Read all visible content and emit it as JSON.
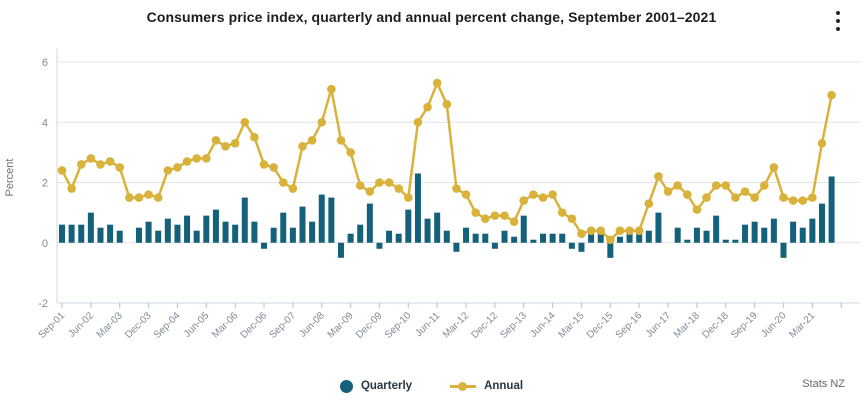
{
  "header": {
    "title": "Consumers price index, quarterly and annual percent change, September 2001–2021"
  },
  "footer": {
    "source": "Stats NZ"
  },
  "colors": {
    "quarterly_bar": "#15607A",
    "annual_line": "#D9B23C",
    "grid_line": "#e4e4e4",
    "axis_line": "#ccd8e4",
    "tick_mark": "#b9cbdf",
    "axis_text": "#7e8b97",
    "ylabel_text": "#65727e"
  },
  "chart_data": {
    "type": "bar+line",
    "title": "Consumers price index, quarterly and annual percent change, September 2001–2021",
    "xlabel": "",
    "ylabel": "Percent",
    "ylim": [
      -2,
      6
    ],
    "yticks": [
      6,
      4,
      2,
      0,
      -2
    ],
    "grid": true,
    "legend_position": "bottom-center",
    "xtick_every": 3,
    "xtick_labels": [
      "Sep-01",
      "Jun-02",
      "Mar-03",
      "Dec-03",
      "Sep-04",
      "Jun-05",
      "Mar-06",
      "Dec-06",
      "Sep-07",
      "Jun-08",
      "Mar-09",
      "Dec-09",
      "Sep-10",
      "Jun-11",
      "Mar-12",
      "Dec-12",
      "Sep-13",
      "Jun-14",
      "Mar-15",
      "Dec-15",
      "Sep-16",
      "Jun-17",
      "Mar-18",
      "Dec-18",
      "Sep-19",
      "Jun-20",
      "Mar-21"
    ],
    "categories": [
      "Sep-01",
      "Dec-01",
      "Mar-02",
      "Jun-02",
      "Sep-02",
      "Dec-02",
      "Mar-03",
      "Jun-03",
      "Sep-03",
      "Dec-03",
      "Mar-04",
      "Jun-04",
      "Sep-04",
      "Dec-04",
      "Mar-05",
      "Jun-05",
      "Sep-05",
      "Dec-05",
      "Mar-06",
      "Jun-06",
      "Sep-06",
      "Dec-06",
      "Mar-07",
      "Jun-07",
      "Sep-07",
      "Dec-07",
      "Mar-08",
      "Jun-08",
      "Sep-08",
      "Dec-08",
      "Mar-09",
      "Jun-09",
      "Sep-09",
      "Dec-09",
      "Mar-10",
      "Jun-10",
      "Sep-10",
      "Dec-10",
      "Mar-11",
      "Jun-11",
      "Sep-11",
      "Dec-11",
      "Mar-12",
      "Jun-12",
      "Sep-12",
      "Dec-12",
      "Mar-13",
      "Jun-13",
      "Sep-13",
      "Dec-13",
      "Mar-14",
      "Jun-14",
      "Sep-14",
      "Dec-14",
      "Mar-15",
      "Jun-15",
      "Sep-15",
      "Dec-15",
      "Mar-16",
      "Jun-16",
      "Sep-16",
      "Dec-16",
      "Mar-17",
      "Jun-17",
      "Sep-17",
      "Dec-17",
      "Mar-18",
      "Jun-18",
      "Sep-18",
      "Dec-18",
      "Mar-19",
      "Jun-19",
      "Sep-19",
      "Dec-19",
      "Mar-20",
      "Jun-20",
      "Sep-20",
      "Dec-20",
      "Mar-21",
      "Jun-21",
      "Sep-21"
    ],
    "series": [
      {
        "name": "Quarterly",
        "type": "bar",
        "color": "#15607A",
        "values": [
          0.6,
          0.6,
          0.6,
          1.0,
          0.5,
          0.6,
          0.4,
          0.0,
          0.5,
          0.7,
          0.4,
          0.8,
          0.6,
          0.9,
          0.4,
          0.9,
          1.1,
          0.7,
          0.6,
          1.5,
          0.7,
          -0.2,
          0.5,
          1.0,
          0.5,
          1.2,
          0.7,
          1.6,
          1.5,
          -0.5,
          0.3,
          0.6,
          1.3,
          -0.2,
          0.4,
          0.3,
          1.1,
          2.3,
          0.8,
          1.0,
          0.4,
          -0.3,
          0.5,
          0.3,
          0.3,
          -0.2,
          0.4,
          0.2,
          0.9,
          0.1,
          0.3,
          0.3,
          0.3,
          -0.2,
          -0.3,
          0.4,
          0.3,
          -0.5,
          0.2,
          0.4,
          0.3,
          0.4,
          1.0,
          0.0,
          0.5,
          0.1,
          0.5,
          0.4,
          0.9,
          0.1,
          0.1,
          0.6,
          0.7,
          0.5,
          0.8,
          -0.5,
          0.7,
          0.5,
          0.8,
          1.3,
          2.2
        ]
      },
      {
        "name": "Annual",
        "type": "line",
        "color": "#D9B23C",
        "values": [
          2.4,
          1.8,
          2.6,
          2.8,
          2.6,
          2.7,
          2.5,
          1.5,
          1.5,
          1.6,
          1.5,
          2.4,
          2.5,
          2.7,
          2.8,
          2.8,
          3.4,
          3.2,
          3.3,
          4.0,
          3.5,
          2.6,
          2.5,
          2.0,
          1.8,
          3.2,
          3.4,
          4.0,
          5.1,
          3.4,
          3.0,
          1.9,
          1.7,
          2.0,
          2.0,
          1.8,
          1.5,
          4.0,
          4.5,
          5.3,
          4.6,
          1.8,
          1.6,
          1.0,
          0.8,
          0.9,
          0.9,
          0.7,
          1.4,
          1.6,
          1.5,
          1.6,
          1.0,
          0.8,
          0.3,
          0.4,
          0.4,
          0.1,
          0.4,
          0.4,
          0.4,
          1.3,
          2.2,
          1.7,
          1.9,
          1.6,
          1.1,
          1.5,
          1.9,
          1.9,
          1.5,
          1.7,
          1.5,
          1.9,
          2.5,
          1.5,
          1.4,
          1.4,
          1.5,
          3.3,
          4.9
        ]
      }
    ]
  }
}
